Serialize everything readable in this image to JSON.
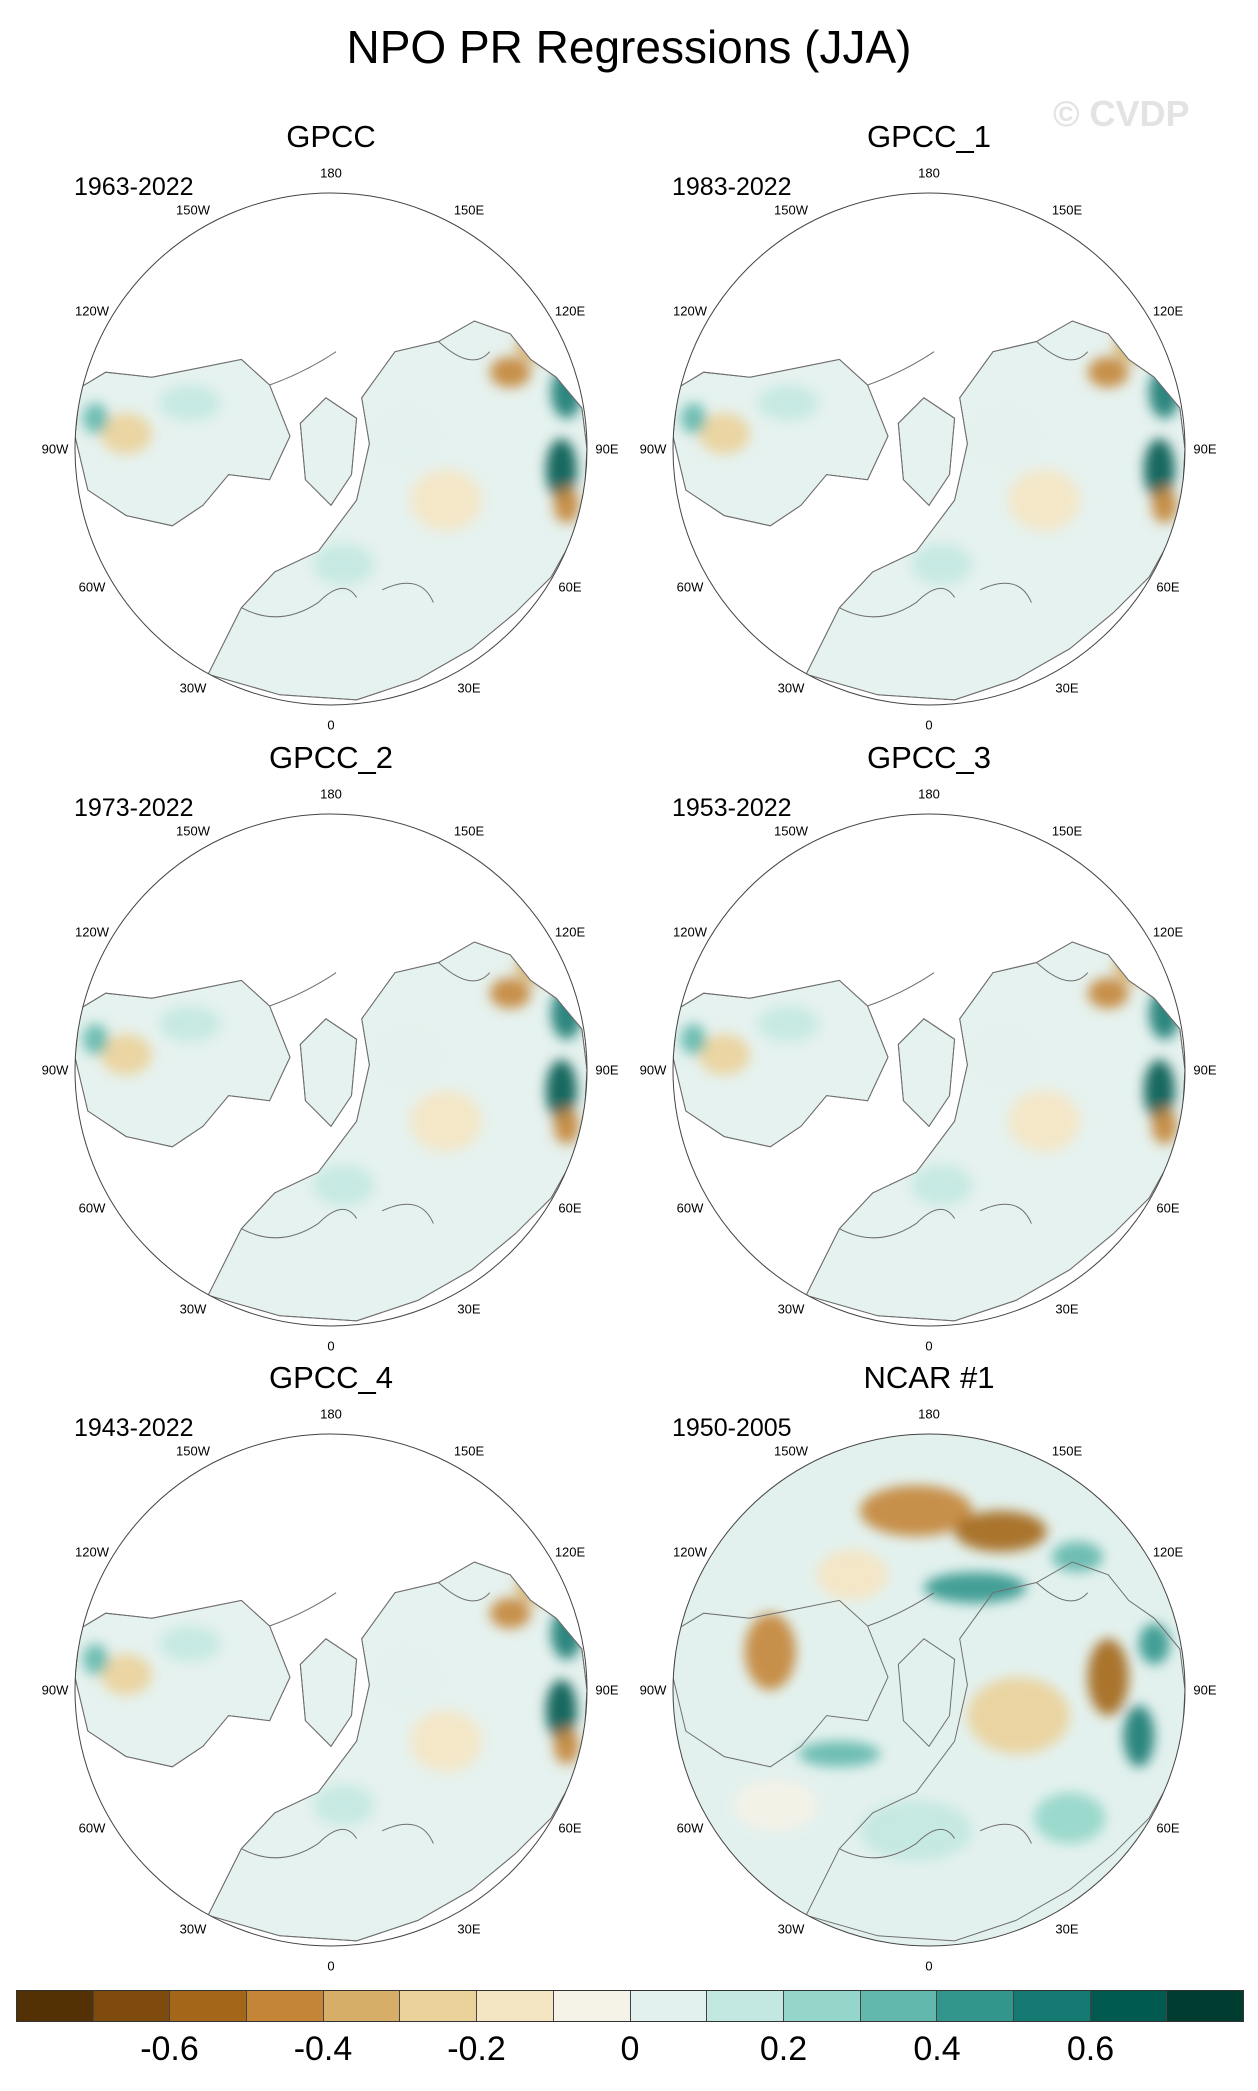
{
  "title": "NPO PR Regressions (JJA)",
  "watermark": "© CVDP",
  "lon_labels": [
    "180",
    "150E",
    "120E",
    "90E",
    "60E",
    "30E",
    "0",
    "30W",
    "60W",
    "90W",
    "120W",
    "150W"
  ],
  "panels": [
    {
      "title": "GPCC",
      "years": "1963-2022",
      "pattern": "obs"
    },
    {
      "title": "GPCC_1",
      "years": "1983-2022",
      "pattern": "obs"
    },
    {
      "title": "GPCC_2",
      "years": "1973-2022",
      "pattern": "obs"
    },
    {
      "title": "GPCC_3",
      "years": "1953-2022",
      "pattern": "obs"
    },
    {
      "title": "GPCC_4",
      "years": "1943-2022",
      "pattern": "obs"
    },
    {
      "title": "NCAR #1",
      "years": "1950-2005",
      "pattern": "model"
    }
  ],
  "colorbar": {
    "colors": [
      "#543005",
      "#7f4a0e",
      "#a4671a",
      "#c48537",
      "#d7ae68",
      "#ebd29a",
      "#f5e6c3",
      "#f5f2e7",
      "#e3f1ee",
      "#c3e8e1",
      "#94d6ca",
      "#63b8ad",
      "#32968d",
      "#157a72",
      "#005a50",
      "#003c30"
    ],
    "ticks": [
      "-0.6",
      "-0.4",
      "-0.2",
      "0",
      "0.2",
      "0.4",
      "0.6"
    ],
    "tick_values": [
      -0.6,
      -0.4,
      -0.2,
      0,
      0.2,
      0.4,
      0.6
    ],
    "min": -0.8,
    "max": 0.8
  }
}
